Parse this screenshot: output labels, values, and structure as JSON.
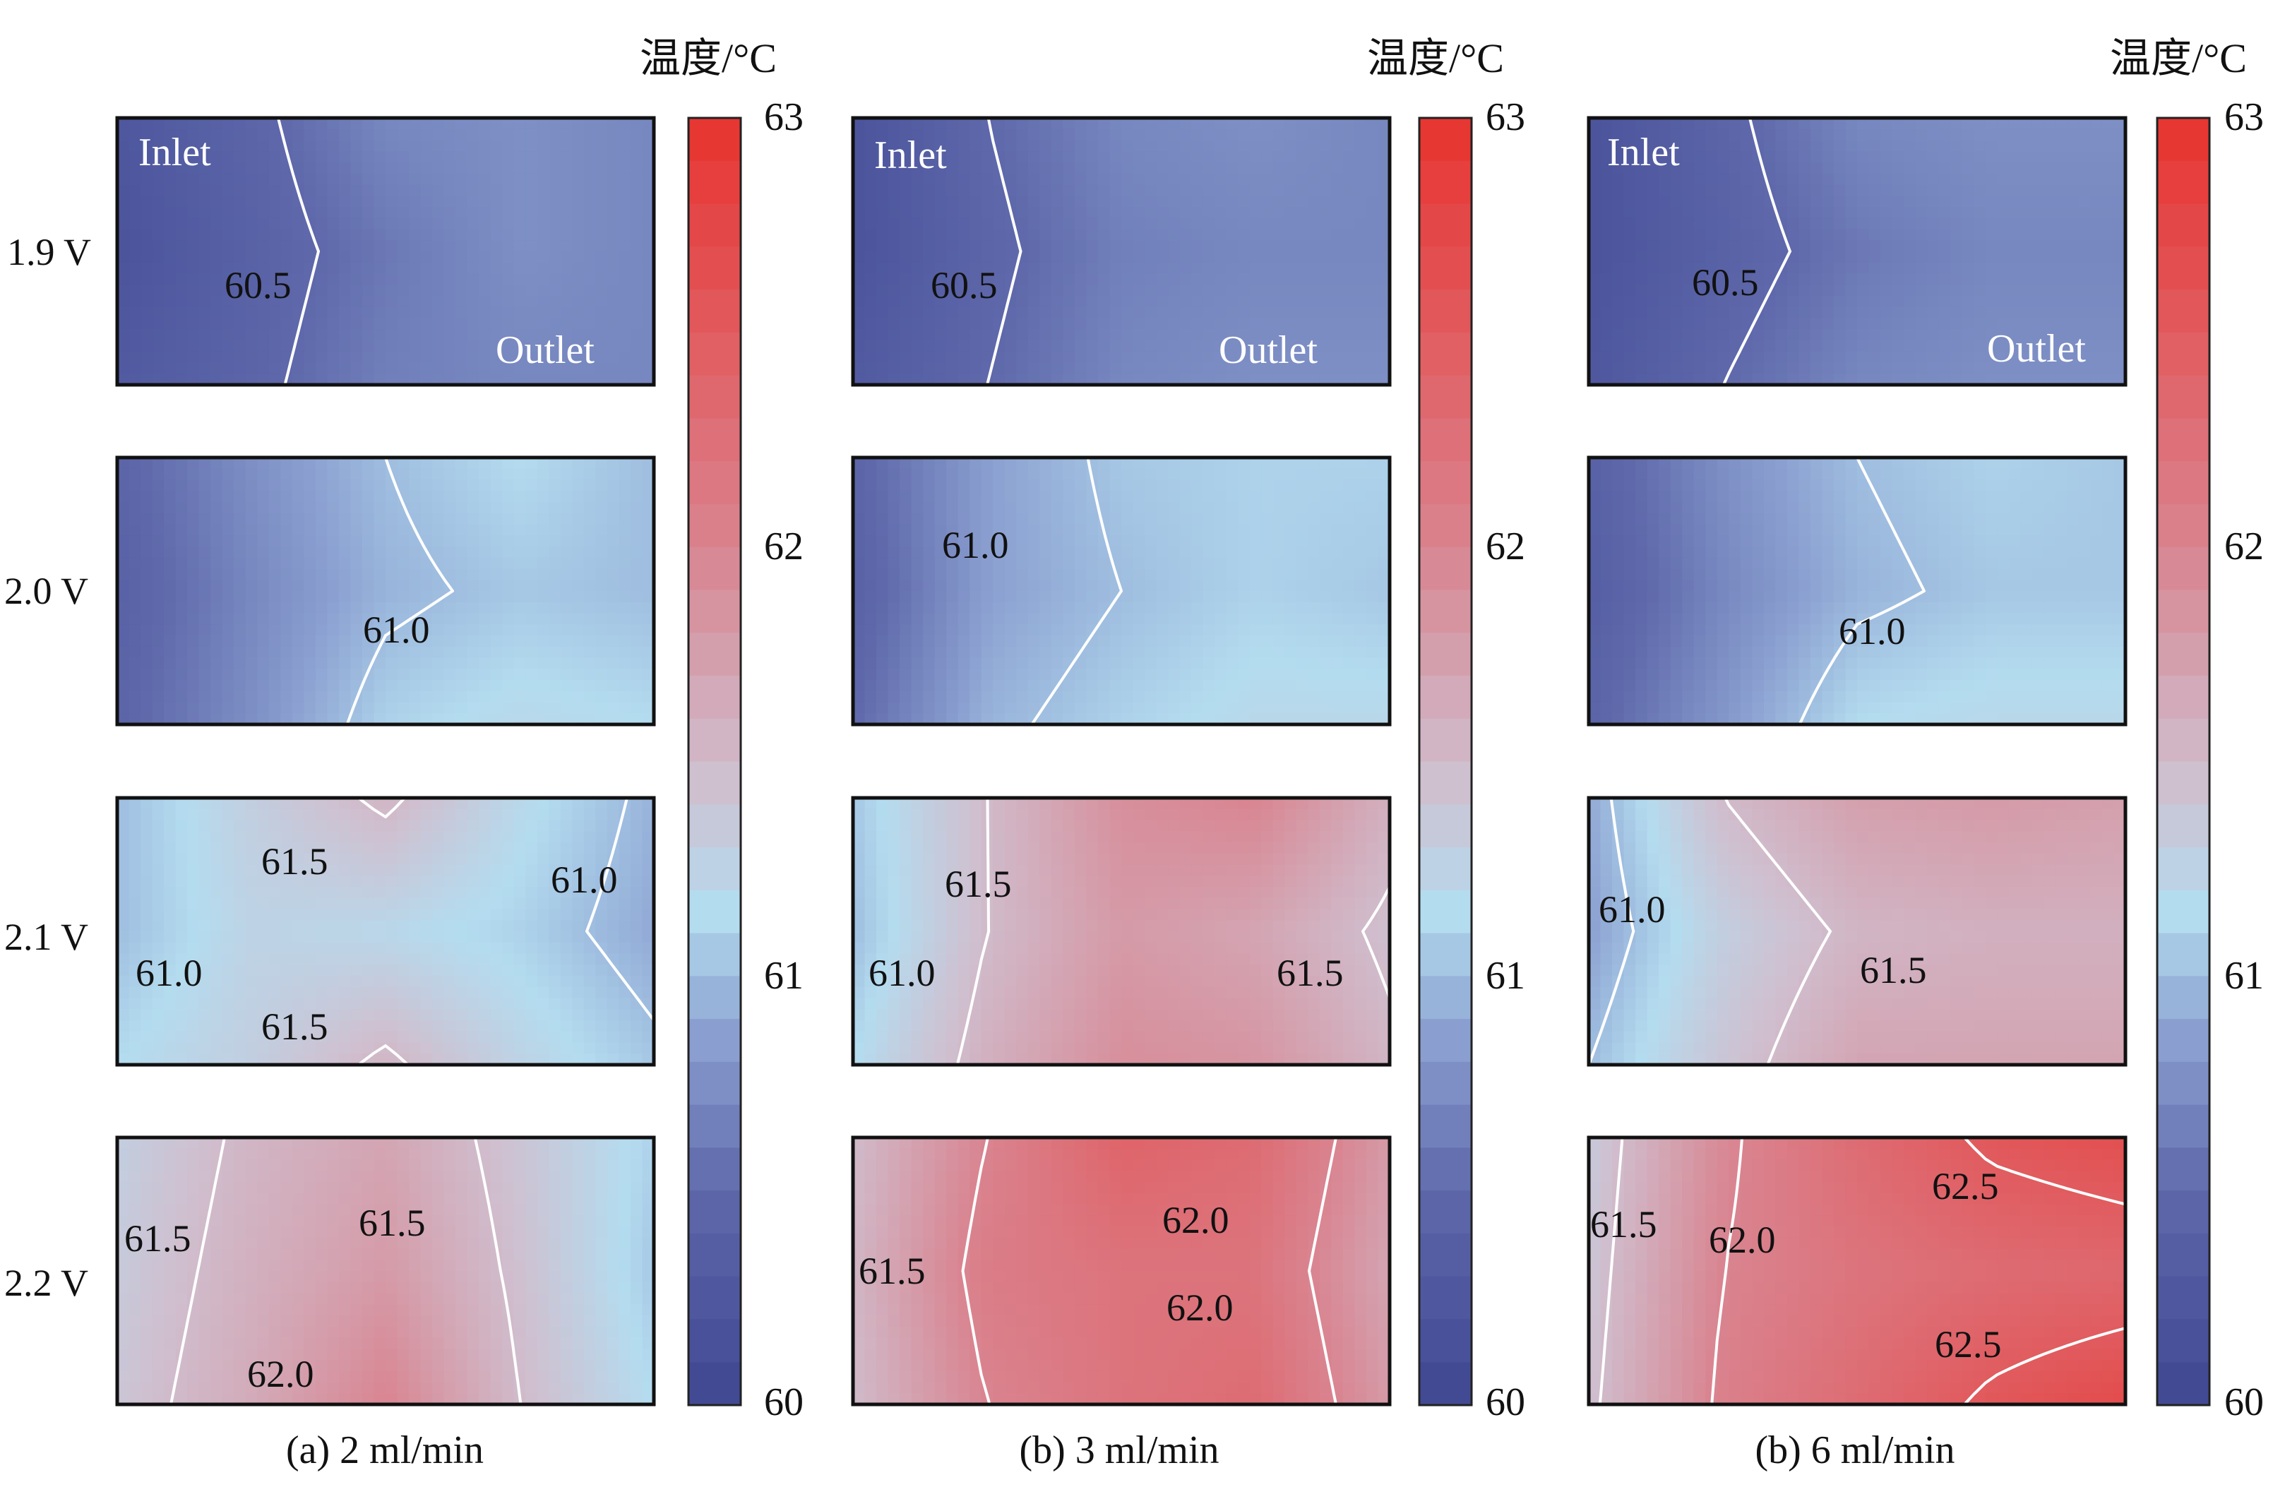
{
  "figure": {
    "row_labels": [
      "1.9 V",
      "2.0 V",
      "2.1 V",
      "2.2 V"
    ],
    "annotations": {
      "inlet": "Inlet",
      "outlet": "Outlet"
    }
  },
  "colorbar": {
    "title": "温度/°C",
    "min": 60,
    "max": 63,
    "ticks": [
      {
        "value": 63,
        "label": "63"
      },
      {
        "value": 62,
        "label": "62"
      },
      {
        "value": 61,
        "label": "61"
      },
      {
        "value": 60,
        "label": "60"
      }
    ],
    "stops": [
      {
        "value": 60.0,
        "color": "#3f4792"
      },
      {
        "value": 60.5,
        "color": "#5e68aa"
      },
      {
        "value": 60.85,
        "color": "#8a9fd0"
      },
      {
        "value": 61.15,
        "color": "#b4dcef"
      },
      {
        "value": 61.45,
        "color": "#cfc0d0"
      },
      {
        "value": 62.0,
        "color": "#d98490"
      },
      {
        "value": 63.0,
        "color": "#e8332e"
      }
    ]
  },
  "chart_data": [
    {
      "type": "heatmap",
      "title": "(a) 2 ml/min",
      "rows": [
        "1.9 V",
        "2.0 V",
        "2.1 V",
        "2.2 V"
      ],
      "zlim": [
        60,
        63
      ],
      "grids": [
        [
          [
            60.25,
            60.45,
            60.7,
            60.75,
            60.7
          ],
          [
            60.2,
            60.4,
            60.6,
            60.75,
            60.7
          ],
          [
            60.3,
            60.45,
            60.65,
            60.7,
            60.7
          ]
        ],
        [
          [
            60.45,
            60.75,
            61.0,
            61.15,
            61.0
          ],
          [
            60.4,
            60.7,
            60.95,
            61.05,
            61.0
          ],
          [
            60.45,
            60.75,
            61.1,
            61.2,
            61.15
          ]
        ],
        [
          [
            61.0,
            61.3,
            61.55,
            61.2,
            60.95
          ],
          [
            61.0,
            61.25,
            61.2,
            61.1,
            60.9
          ],
          [
            61.15,
            61.3,
            61.55,
            61.25,
            61.05
          ]
        ],
        [
          [
            61.3,
            61.55,
            61.7,
            61.4,
            61.1
          ],
          [
            61.35,
            61.6,
            61.8,
            61.45,
            61.05
          ],
          [
            61.4,
            61.65,
            62.0,
            61.5,
            61.15
          ]
        ]
      ],
      "contour_labels": [
        [
          {
            "text": "60.5",
            "value": 60.5
          }
        ],
        [
          {
            "text": "61.0",
            "value": 61.0
          }
        ],
        [
          {
            "text": "61.5",
            "value": 61.5
          },
          {
            "text": "61.0",
            "value": 61.0
          },
          {
            "text": "61.0",
            "value": 61.0
          },
          {
            "text": "61.5",
            "value": 61.5
          }
        ],
        [
          {
            "text": "61.5",
            "value": 61.5
          },
          {
            "text": "61.5",
            "value": 61.5
          },
          {
            "text": "62.0",
            "value": 62.0
          }
        ]
      ]
    },
    {
      "type": "heatmap",
      "title": "(b) 3 ml/min",
      "rows": [
        "1.9 V",
        "2.0 V",
        "2.1 V",
        "2.2 V"
      ],
      "zlim": [
        60,
        63
      ],
      "grids": [
        [
          [
            60.2,
            60.5,
            60.7,
            60.75,
            60.7
          ],
          [
            60.2,
            60.45,
            60.65,
            60.7,
            60.7
          ],
          [
            60.3,
            60.5,
            60.7,
            60.75,
            60.75
          ]
        ],
        [
          [
            60.45,
            60.85,
            61.05,
            61.1,
            61.1
          ],
          [
            60.4,
            60.85,
            61.0,
            61.1,
            61.05
          ],
          [
            60.5,
            60.95,
            61.1,
            61.2,
            61.2
          ]
        ],
        [
          [
            61.05,
            61.5,
            61.9,
            62.0,
            61.6
          ],
          [
            61.0,
            61.5,
            61.8,
            61.7,
            61.45
          ],
          [
            61.15,
            61.6,
            61.9,
            61.85,
            61.55
          ]
        ],
        [
          [
            61.5,
            62.0,
            62.4,
            62.3,
            61.8
          ],
          [
            61.55,
            62.1,
            62.2,
            62.2,
            61.7
          ],
          [
            61.5,
            62.0,
            62.2,
            62.3,
            61.8
          ]
        ]
      ],
      "contour_labels": [
        [
          {
            "text": "60.5",
            "value": 60.5
          }
        ],
        [
          {
            "text": "61.0",
            "value": 61.0
          }
        ],
        [
          {
            "text": "61.5",
            "value": 61.5
          },
          {
            "text": "61.0",
            "value": 61.0
          },
          {
            "text": "61.5",
            "value": 61.5
          }
        ],
        [
          {
            "text": "62.0",
            "value": 62.0
          },
          {
            "text": "61.5",
            "value": 61.5
          },
          {
            "text": "62.0",
            "value": 62.0
          }
        ]
      ]
    },
    {
      "type": "heatmap",
      "title": "(b) 6 ml/min",
      "rows": [
        "1.9 V",
        "2.0 V",
        "2.1 V",
        "2.2 V"
      ],
      "zlim": [
        60,
        63
      ],
      "grids": [
        [
          [
            60.2,
            60.45,
            60.7,
            60.75,
            60.75
          ],
          [
            60.2,
            60.4,
            60.6,
            60.7,
            60.7
          ],
          [
            60.25,
            60.5,
            60.7,
            60.75,
            60.75
          ]
        ],
        [
          [
            60.4,
            60.75,
            61.0,
            61.1,
            61.05
          ],
          [
            60.35,
            60.7,
            60.95,
            61.05,
            61.05
          ],
          [
            60.45,
            60.8,
            61.15,
            61.2,
            61.2
          ]
        ],
        [
          [
            60.9,
            61.5,
            61.75,
            61.8,
            61.75
          ],
          [
            60.85,
            61.3,
            61.55,
            61.6,
            61.6
          ],
          [
            61.0,
            61.4,
            61.7,
            61.7,
            61.7
          ]
        ],
        [
          [
            61.35,
            61.95,
            62.3,
            62.55,
            62.65
          ],
          [
            61.4,
            62.0,
            62.2,
            62.3,
            62.35
          ],
          [
            61.45,
            62.05,
            62.3,
            62.55,
            62.7
          ]
        ]
      ],
      "contour_labels": [
        [
          {
            "text": "60.5",
            "value": 60.5
          }
        ],
        [
          {
            "text": "61.0",
            "value": 61.0
          }
        ],
        [
          {
            "text": "61.0",
            "value": 61.0
          },
          {
            "text": "61.5",
            "value": 61.5
          }
        ],
        [
          {
            "text": "62.5",
            "value": 62.5
          },
          {
            "text": "61.5",
            "value": 61.5
          },
          {
            "text": "62.0",
            "value": 62.0
          },
          {
            "text": "62.5",
            "value": 62.5
          }
        ]
      ]
    }
  ]
}
